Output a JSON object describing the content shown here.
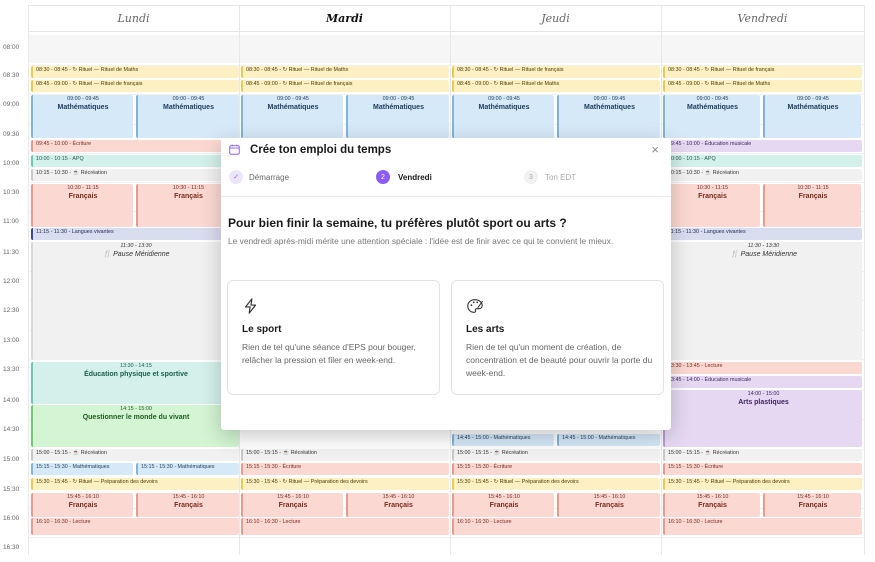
{
  "days": [
    {
      "label": "Lundi",
      "active": false
    },
    {
      "label": "Mardi",
      "active": true
    },
    {
      "label": "Jeudi",
      "active": false
    },
    {
      "label": "Vendredi",
      "active": false
    }
  ],
  "times": [
    "08:00",
    "08:30",
    "09:00",
    "09:30",
    "10:00",
    "10:30",
    "11:00",
    "11:30",
    "12:00",
    "12:30",
    "13:00",
    "13:30",
    "14:00",
    "14:30",
    "15:00",
    "15:30",
    "16:00",
    "16:30"
  ],
  "events": {
    "lundi": [
      {
        "text": "08:30 - 08:45 - ↻ Rituel — Rituel de Maths",
        "kind": "yellow"
      },
      {
        "text": "08:45 - 09:00 - ↻ Rituel — Rituel de français",
        "kind": "yellow"
      },
      {
        "time": "09:00 - 09:45",
        "title": "Mathématiques",
        "kind": "blue"
      },
      {
        "time": "09:00 - 09:45",
        "title": "Mathématiques",
        "kind": "blue"
      },
      {
        "text": "09:45 - 10:00 - Écriture",
        "kind": "red"
      },
      {
        "text": "10:00 - 10:15 - APQ",
        "kind": "teal"
      },
      {
        "text": "10:15 - 10:30 - ☕ Récréation",
        "kind": "gray"
      },
      {
        "time": "10:30 - 11:15",
        "title": "Français",
        "kind": "red"
      },
      {
        "time": "10:30 - 11:15",
        "title": "Français",
        "kind": "red"
      },
      {
        "text": "11:15 - 11:30 - Langues vivantes",
        "kind": "navy"
      },
      {
        "time": "11:30 - 13:30",
        "title": "🍴 Pause Méridienne",
        "kind": "lunch"
      },
      {
        "time": "13:30 - 14:15",
        "title": "Éducation physique et sportive",
        "kind": "teal"
      },
      {
        "time": "14:15 - 15:00",
        "title": "Questionner le monde du vivant",
        "kind": "green"
      },
      {
        "text": "15:00 - 15:15 - ☕ Récréation",
        "kind": "gray"
      },
      {
        "text": "15:15 - 15:30 - Mathématiques",
        "kind": "blue"
      },
      {
        "text": "15:15 - 15:30 - Mathématiques",
        "kind": "blue"
      },
      {
        "text": "15:30 - 15:45 - ↻ Rituel — Préparation des devoirs",
        "kind": "yellow"
      },
      {
        "time": "15:45 - 16:10",
        "title": "Français",
        "kind": "red"
      },
      {
        "time": "15:45 - 16:10",
        "title": "Français",
        "kind": "red"
      },
      {
        "text": "16:10 - 16:30 - Lecture",
        "kind": "red"
      }
    ],
    "mardi": [
      {
        "text": "08:30 - 08:45 - ↻ Rituel — Rituel de Maths",
        "kind": "yellow"
      },
      {
        "text": "08:45 - 09:00 - ↻ Rituel — Rituel de français",
        "kind": "yellow"
      },
      {
        "time": "09:00 - 09:45",
        "title": "Mathématiques",
        "kind": "blue"
      },
      {
        "time": "09:00 - 09:45",
        "title": "Mathématiques",
        "kind": "blue"
      },
      {
        "text": "15:00 - 15:15 - ☕ Récréation",
        "kind": "gray"
      },
      {
        "text": "15:15 - 15:30 - Écriture",
        "kind": "red"
      },
      {
        "text": "15:30 - 15:45 - ↻ Rituel — Préparation des devoirs",
        "kind": "yellow"
      },
      {
        "time": "15:45 - 16:10",
        "title": "Français",
        "kind": "red"
      },
      {
        "time": "15:45 - 16:10",
        "title": "Français",
        "kind": "red"
      },
      {
        "text": "16:10 - 16:30 - Lecture",
        "kind": "red"
      }
    ],
    "jeudi": [
      {
        "text": "08:30 - 08:45 - ↻ Rituel — Rituel de français",
        "kind": "yellow"
      },
      {
        "text": "08:45 - 09:00 - ↻ Rituel — Rituel de Maths",
        "kind": "yellow"
      },
      {
        "time": "09:00 - 09:45",
        "title": "Mathématiques",
        "kind": "blue"
      },
      {
        "time": "09:00 - 09:45",
        "title": "Mathématiques",
        "kind": "blue"
      },
      {
        "text": "14:45 - 15:00 - Mathématiques",
        "kind": "blue"
      },
      {
        "text": "14:45 - 15:00 - Mathématiques",
        "kind": "blue"
      },
      {
        "text": "15:00 - 15:15 - ☕ Récréation",
        "kind": "gray"
      },
      {
        "text": "15:15 - 15:30 - Écriture",
        "kind": "red"
      },
      {
        "text": "15:30 - 15:45 - ↻ Rituel — Préparation des devoirs",
        "kind": "yellow"
      },
      {
        "time": "15:45 - 16:10",
        "title": "Français",
        "kind": "red"
      },
      {
        "time": "15:45 - 16:10",
        "title": "Français",
        "kind": "red"
      },
      {
        "text": "16:10 - 16:30 - Lecture",
        "kind": "red"
      }
    ],
    "vendredi": [
      {
        "text": "08:30 - 08:45 - ↻ Rituel — Rituel de français",
        "kind": "yellow"
      },
      {
        "text": "08:45 - 09:00 - ↻ Rituel — Rituel de Maths",
        "kind": "yellow"
      },
      {
        "time": "09:00 - 09:45",
        "title": "Mathématiques",
        "kind": "blue"
      },
      {
        "time": "09:00 - 09:45",
        "title": "Mathématiques",
        "kind": "blue"
      },
      {
        "text": "09:45 - 10:00 - Éducation musicale",
        "kind": "purple"
      },
      {
        "text": "10:00 - 10:15 - APQ",
        "kind": "teal"
      },
      {
        "text": "10:15 - 10:30 - ☕ Récréation",
        "kind": "gray"
      },
      {
        "time": "10:30 - 11:15",
        "title": "Français",
        "kind": "red"
      },
      {
        "time": "10:30 - 11:15",
        "title": "Français",
        "kind": "red"
      },
      {
        "text": "11:15 - 11:30 - Langues vivantes",
        "kind": "navy"
      },
      {
        "time": "11:30 - 13:30",
        "title": "🍴 Pause Méridienne",
        "kind": "lunch"
      },
      {
        "text": "13:30 - 13:45 - Lecture",
        "kind": "red"
      },
      {
        "text": "13:45 - 14:00 - Éducation musicale",
        "kind": "purple"
      },
      {
        "time": "14:00 - 15:00",
        "title": "Arts plastiques",
        "kind": "purple"
      },
      {
        "text": "15:00 - 15:15 - ☕ Récréation",
        "kind": "gray"
      },
      {
        "text": "15:15 - 15:30 - Écriture",
        "kind": "red"
      },
      {
        "text": "15:30 - 15:45 - ↻ Rituel — Préparation des devoirs",
        "kind": "yellow"
      },
      {
        "time": "15:45 - 16:10",
        "title": "Français",
        "kind": "red"
      },
      {
        "time": "15:45 - 16:10",
        "title": "Français",
        "kind": "red"
      },
      {
        "text": "16:10 - 16:30 - Lecture",
        "kind": "red"
      }
    ]
  },
  "modal": {
    "title": "Crée ton emploi du temps",
    "close": "×",
    "steps": [
      {
        "num": "✓",
        "label": "Démarrage",
        "state": "done"
      },
      {
        "num": "2",
        "label": "Vendredi",
        "state": "active"
      },
      {
        "num": "3",
        "label": "Ton EDT",
        "state": "todo"
      }
    ],
    "question": "Pour bien finir la semaine, tu préfères plutôt sport ou arts ?",
    "subtitle": "Le vendredi après-midi mérite une attention spéciale : l'idée est de finir avec ce qui te convient le mieux.",
    "options": [
      {
        "icon": "lightning-icon",
        "title": "Le sport",
        "desc": "Rien de tel qu'une séance d'EPS pour bouger, relâcher la pression et filer en week-end."
      },
      {
        "icon": "palette-icon",
        "title": "Les arts",
        "desc": "Rien de tel qu'un moment de création, de concentration et de beauté pour ouvrir la porte du week-end."
      }
    ]
  },
  "colors": {
    "accent": "#8b5cf6",
    "accent_soft": "#ede5fb"
  }
}
